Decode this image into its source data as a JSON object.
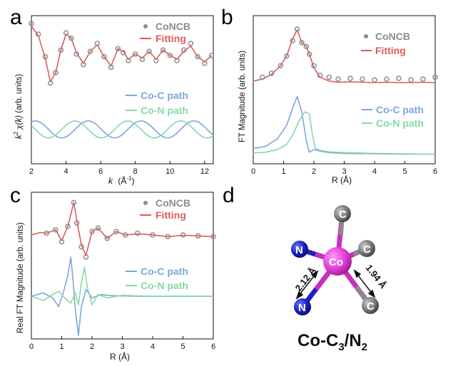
{
  "colors": {
    "data": "#8c8c8c",
    "fit": "#e05a5a",
    "coc": "#7ea6dc",
    "con": "#86d8a8",
    "co_atom": "#e23fd7",
    "n_atom": "#1522c0",
    "c_atom": "#7a7a7a"
  },
  "chart_data": [
    {
      "panel": "a",
      "type": "line",
      "xlabel_pre": "k",
      "xlabel_unit": "(Å",
      "xlabel_exp": "-1",
      "xlabel_post": ")",
      "ylabel_pre": "k",
      "ylabel_exp": "2",
      "ylabel_mid": " χ(k)",
      "ylabel_post": " (arb. units)",
      "xlim": [
        2,
        12.5
      ],
      "xticks": [
        "2",
        "4",
        "6",
        "8",
        "10",
        "12"
      ],
      "legend_top": [
        "CoNCB",
        "Fitting"
      ],
      "legend_bottom": [
        "Co-C path",
        "Co-N path"
      ],
      "series": [
        {
          "name": "CoNCB",
          "style": "scatter",
          "x": [
            2.0,
            2.4,
            2.8,
            3.1,
            3.4,
            3.7,
            4.0,
            4.3,
            4.6,
            5.0,
            5.4,
            5.8,
            6.2,
            6.6,
            7.0,
            7.3,
            7.6,
            8.0,
            8.4,
            8.8,
            9.2,
            9.6,
            10.0,
            10.4,
            10.8,
            11.2,
            11.6,
            12.0,
            12.4
          ],
          "y": [
            1.3,
            0.9,
            0.05,
            -0.95,
            -0.55,
            0.3,
            0.95,
            0.75,
            0.15,
            -0.25,
            0.25,
            0.55,
            0.05,
            -0.35,
            0.35,
            0.2,
            -0.1,
            0.15,
            -0.05,
            0.25,
            -0.1,
            0.3,
            0.1,
            -0.1,
            0.3,
            0.55,
            0.05,
            -0.2,
            0.1
          ]
        },
        {
          "name": "Fitting",
          "style": "line",
          "x": [
            2.0,
            2.4,
            2.8,
            3.1,
            3.4,
            3.7,
            4.0,
            4.3,
            4.6,
            5.0,
            5.4,
            5.8,
            6.2,
            6.6,
            7.0,
            7.3,
            7.6,
            8.0,
            8.4,
            8.8,
            9.2,
            9.6,
            10.0,
            10.4,
            10.8,
            11.2,
            11.6,
            12.0,
            12.4
          ],
          "y": [
            1.2,
            0.85,
            0.0,
            -0.9,
            -0.55,
            0.3,
            0.9,
            0.75,
            0.2,
            -0.2,
            0.25,
            0.5,
            0.05,
            -0.3,
            0.35,
            0.25,
            -0.05,
            0.15,
            0.0,
            0.25,
            -0.05,
            0.3,
            0.1,
            -0.05,
            0.25,
            0.45,
            0.05,
            -0.15,
            0.1
          ]
        },
        {
          "name": "Co-C path",
          "style": "line",
          "offset": -2.7,
          "amp": 0.32,
          "period": 3.05,
          "phase": 0.35
        },
        {
          "name": "Co-N path",
          "style": "line",
          "offset": -2.7,
          "amp": 0.32,
          "period": 3.05,
          "phase": 0.85
        }
      ]
    },
    {
      "panel": "b",
      "type": "line",
      "xlabel_pre": "R ",
      "xlabel_unit": "(Å)",
      "ylabel_pre": "FT Magnitude",
      "ylabel_post": " (arb. units)",
      "xlim": [
        0,
        6
      ],
      "xticks": [
        "0",
        "1",
        "2",
        "3",
        "4",
        "5",
        "6"
      ],
      "legend_top": [
        "CoNCB",
        "Fitting"
      ],
      "legend_bottom": [
        "Co-C path",
        "Co-N path"
      ],
      "series": [
        {
          "name": "CoNCB",
          "style": "scatter",
          "x": [
            0.3,
            0.6,
            0.9,
            1.1,
            1.3,
            1.45,
            1.6,
            1.75,
            1.85,
            2.0,
            2.2,
            2.5,
            2.8,
            3.2,
            3.6,
            4.0,
            4.4,
            4.8,
            5.2,
            5.6,
            6.0
          ],
          "y": [
            0.15,
            0.25,
            0.45,
            0.7,
            1.1,
            1.4,
            1.05,
            0.95,
            0.75,
            0.45,
            0.2,
            0.15,
            0.1,
            0.12,
            0.1,
            0.08,
            0.1,
            0.12,
            0.08,
            0.1,
            0.15
          ]
        },
        {
          "name": "Fitting",
          "style": "line",
          "x": [
            0.0,
            0.3,
            0.6,
            0.9,
            1.1,
            1.3,
            1.45,
            1.6,
            1.75,
            1.85,
            2.0,
            2.2,
            2.5,
            2.8,
            3.2,
            3.6,
            4.0,
            4.4,
            4.8,
            5.2,
            5.6,
            6.0
          ],
          "y": [
            0.05,
            0.1,
            0.22,
            0.45,
            0.7,
            1.15,
            1.38,
            1.05,
            0.95,
            0.75,
            0.4,
            0.15,
            0.05,
            0.02,
            0.03,
            0.02,
            0.01,
            0.02,
            0.01,
            0.01,
            0.02,
            0.01
          ]
        },
        {
          "name": "Co-C path",
          "style": "line",
          "baseline": -1.85,
          "x": [
            0.0,
            0.4,
            0.8,
            1.1,
            1.3,
            1.45,
            1.6,
            1.75,
            1.85,
            2.0,
            2.2,
            2.5,
            3.0,
            4.0,
            5.0,
            6.0
          ],
          "y": [
            0.15,
            0.2,
            0.4,
            0.75,
            1.2,
            1.5,
            1.1,
            0.35,
            0.05,
            0.12,
            0.08,
            0.04,
            0.02,
            0.01,
            0.0,
            0.0
          ]
        },
        {
          "name": "Co-N path",
          "style": "line",
          "baseline": -1.85,
          "x": [
            0.0,
            0.4,
            0.8,
            1.1,
            1.3,
            1.5,
            1.7,
            1.85,
            1.95,
            2.05,
            2.2,
            2.5,
            3.0,
            4.0,
            5.0,
            6.0
          ],
          "y": [
            0.03,
            0.05,
            0.12,
            0.25,
            0.5,
            0.85,
            1.1,
            1.05,
            0.5,
            0.15,
            0.1,
            0.06,
            0.04,
            0.02,
            0.01,
            0.0
          ]
        }
      ]
    },
    {
      "panel": "c",
      "type": "line",
      "xlabel_pre": "R ",
      "xlabel_unit": "(Å)",
      "ylabel_pre": "Real FT Magnitude",
      "ylabel_post": " (arb. units)",
      "xlim": [
        0,
        6
      ],
      "xticks": [
        "0",
        "1",
        "2",
        "3",
        "4",
        "5",
        "6"
      ],
      "legend_top": [
        "CoNCB",
        "Fitting"
      ],
      "legend_bottom": [
        "Co-C path",
        "Co-N path"
      ],
      "series": [
        {
          "name": "CoNCB",
          "style": "scatter",
          "x": [
            0.5,
            0.8,
            1.0,
            1.2,
            1.4,
            1.5,
            1.65,
            1.8,
            2.0,
            2.2,
            2.5,
            2.8,
            3.1,
            3.5,
            4.0,
            4.5,
            5.0,
            5.5,
            6.0
          ],
          "y": [
            0.1,
            0.2,
            -0.15,
            0.3,
            1.0,
            0.4,
            -0.3,
            -0.6,
            0.15,
            0.25,
            -0.05,
            0.15,
            0.05,
            0.1,
            0.05,
            0.0,
            0.05,
            0.02,
            0.0
          ]
        },
        {
          "name": "Fitting",
          "style": "line",
          "x": [
            0.0,
            0.3,
            0.5,
            0.8,
            1.0,
            1.2,
            1.4,
            1.5,
            1.65,
            1.8,
            2.0,
            2.2,
            2.5,
            2.8,
            3.1,
            3.5,
            4.0,
            4.5,
            5.0,
            5.5,
            6.0
          ],
          "y": [
            0.05,
            0.12,
            0.1,
            0.2,
            -0.12,
            0.3,
            1.0,
            0.45,
            -0.25,
            -0.55,
            0.15,
            0.25,
            -0.05,
            0.15,
            0.05,
            0.08,
            0.05,
            0.0,
            0.04,
            0.02,
            0.0
          ]
        },
        {
          "name": "Co-C path",
          "style": "line",
          "baseline": -1.75,
          "x": [
            0.0,
            0.4,
            0.7,
            0.9,
            1.05,
            1.2,
            1.3,
            1.38,
            1.45,
            1.55,
            1.65,
            1.8,
            2.0,
            2.3,
            2.6,
            3.0,
            3.5,
            4.0,
            5.0,
            6.0
          ],
          "y": [
            0.0,
            0.1,
            -0.05,
            -0.3,
            0.1,
            0.6,
            1.15,
            0.4,
            -0.4,
            -1.15,
            -0.3,
            0.2,
            -0.05,
            0.05,
            0.02,
            0.01,
            0.0,
            0.0,
            0.0,
            0.0
          ]
        },
        {
          "name": "Co-N path",
          "style": "line",
          "baseline": -1.75,
          "x": [
            0.0,
            0.4,
            0.7,
            0.9,
            1.1,
            1.3,
            1.45,
            1.55,
            1.65,
            1.75,
            1.85,
            2.0,
            2.2,
            2.5,
            3.0,
            3.5,
            4.0,
            5.0,
            6.0
          ],
          "y": [
            0.0,
            -0.12,
            0.05,
            0.15,
            -0.05,
            -0.2,
            0.1,
            -0.25,
            0.4,
            0.85,
            0.25,
            -0.25,
            0.05,
            -0.05,
            0.03,
            0.01,
            0.0,
            0.0,
            0.0
          ]
        }
      ]
    }
  ],
  "structure": {
    "panel": "d",
    "center": "Co",
    "atoms": [
      {
        "element": "C",
        "label": "C"
      },
      {
        "element": "C",
        "label": "C"
      },
      {
        "element": "C",
        "label": "C"
      },
      {
        "element": "N",
        "label": "N"
      },
      {
        "element": "N",
        "label": "N"
      }
    ],
    "bond_label_n": "2.12 Å",
    "bond_label_c": "1.94 Å",
    "formula_main": "Co-C",
    "formula_sub1": "3",
    "formula_mid": "/N",
    "formula_sub2": "2"
  }
}
